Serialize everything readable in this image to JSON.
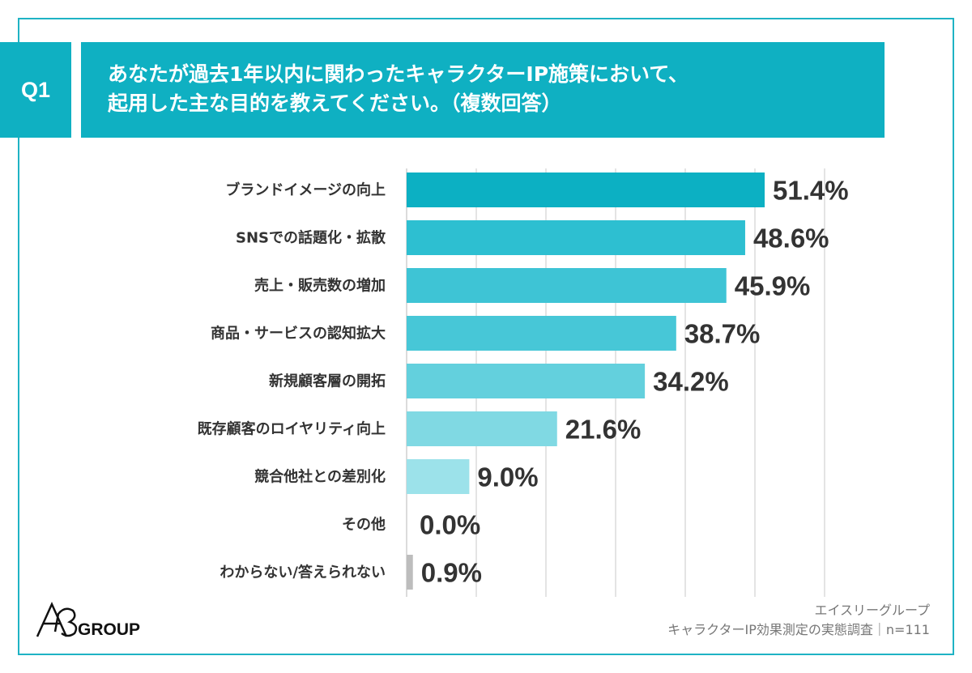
{
  "header": {
    "question_label": "Q1",
    "title_line1": "あなたが過去1年以内に関わったキャラクターIP施策において、",
    "title_line2": "起用した主な目的を教えてください。（複数回答）"
  },
  "chart_data": {
    "type": "bar",
    "orientation": "horizontal",
    "categories": [
      "ブランドイメージの向上",
      "SNSでの話題化・拡散",
      "売上・販売数の増加",
      "商品・サービスの認知拡大",
      "新規顧客層の開拓",
      "既存顧客のロイヤリティ向上",
      "競合他社との差別化",
      "その他",
      "わからない/答えられない"
    ],
    "values": [
      51.4,
      48.6,
      45.9,
      38.7,
      34.2,
      21.6,
      9.0,
      0.0,
      0.9
    ],
    "value_labels": [
      "51.4%",
      "48.6%",
      "45.9%",
      "38.7%",
      "34.2%",
      "21.6%",
      "9.0%",
      "0.0%",
      "0.9%"
    ],
    "colors": [
      "#0cb0c3",
      "#2dbfd1",
      "#3ec4d5",
      "#47c7d7",
      "#63d0dd",
      "#80d9e3",
      "#9ce2ea",
      "#9ce2ea",
      "#bdbdbd"
    ],
    "xlim": [
      0,
      60
    ],
    "grid": true,
    "unit": "%"
  },
  "footer": {
    "logo_text": "GROUP",
    "logo_mark": "A3",
    "source_line1": "エイスリーグループ",
    "source_line2": "キャラクターIP効果測定の実態調査｜n=111"
  }
}
